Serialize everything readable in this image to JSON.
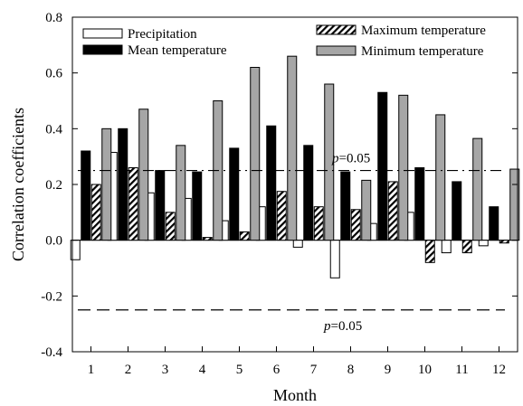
{
  "chart_data": {
    "type": "bar",
    "xlabel": "Month",
    "ylabel": "Correlation coefficients",
    "ylim": [
      -0.4,
      0.8
    ],
    "yticks": [
      "-0.4",
      "-0.2",
      "0.0",
      "0.2",
      "0.4",
      "0.6",
      "0.8"
    ],
    "categories": [
      "1",
      "2",
      "3",
      "4",
      "5",
      "6",
      "7",
      "8",
      "9",
      "10",
      "11",
      "12"
    ],
    "legend_placement": "top",
    "series": [
      {
        "name": "Precipitation",
        "style": "white",
        "values": [
          -0.07,
          0.315,
          0.17,
          0.15,
          0.07,
          0.12,
          -0.025,
          -0.135,
          0.06,
          0.1,
          -0.045,
          -0.02
        ]
      },
      {
        "name": "Mean temperature",
        "style": "black",
        "values": [
          0.32,
          0.4,
          0.25,
          0.245,
          0.33,
          0.41,
          0.34,
          0.245,
          0.53,
          0.26,
          0.21,
          0.12
        ]
      },
      {
        "name": "Maximum temperature",
        "style": "hatched",
        "values": [
          0.2,
          0.26,
          0.1,
          0.01,
          0.03,
          0.175,
          0.12,
          0.11,
          0.21,
          -0.08,
          -0.045,
          -0.01
        ]
      },
      {
        "name": "Minimum temperature",
        "style": "gray",
        "values": [
          0.4,
          0.47,
          0.34,
          0.5,
          0.62,
          0.66,
          0.56,
          0.215,
          0.52,
          0.45,
          0.365,
          0.255
        ]
      }
    ],
    "reference_lines": [
      {
        "value": 0.25,
        "label_prefix": "p",
        "label_suffix": "=0.05",
        "style": "dash-dot"
      },
      {
        "value": -0.25,
        "label_prefix": "p",
        "label_suffix": "=0.05",
        "style": "dashed"
      }
    ],
    "colors": {
      "black_bar": "#000000",
      "gray_bar": "#a6a6a6",
      "white_bar": "#ffffff"
    }
  }
}
